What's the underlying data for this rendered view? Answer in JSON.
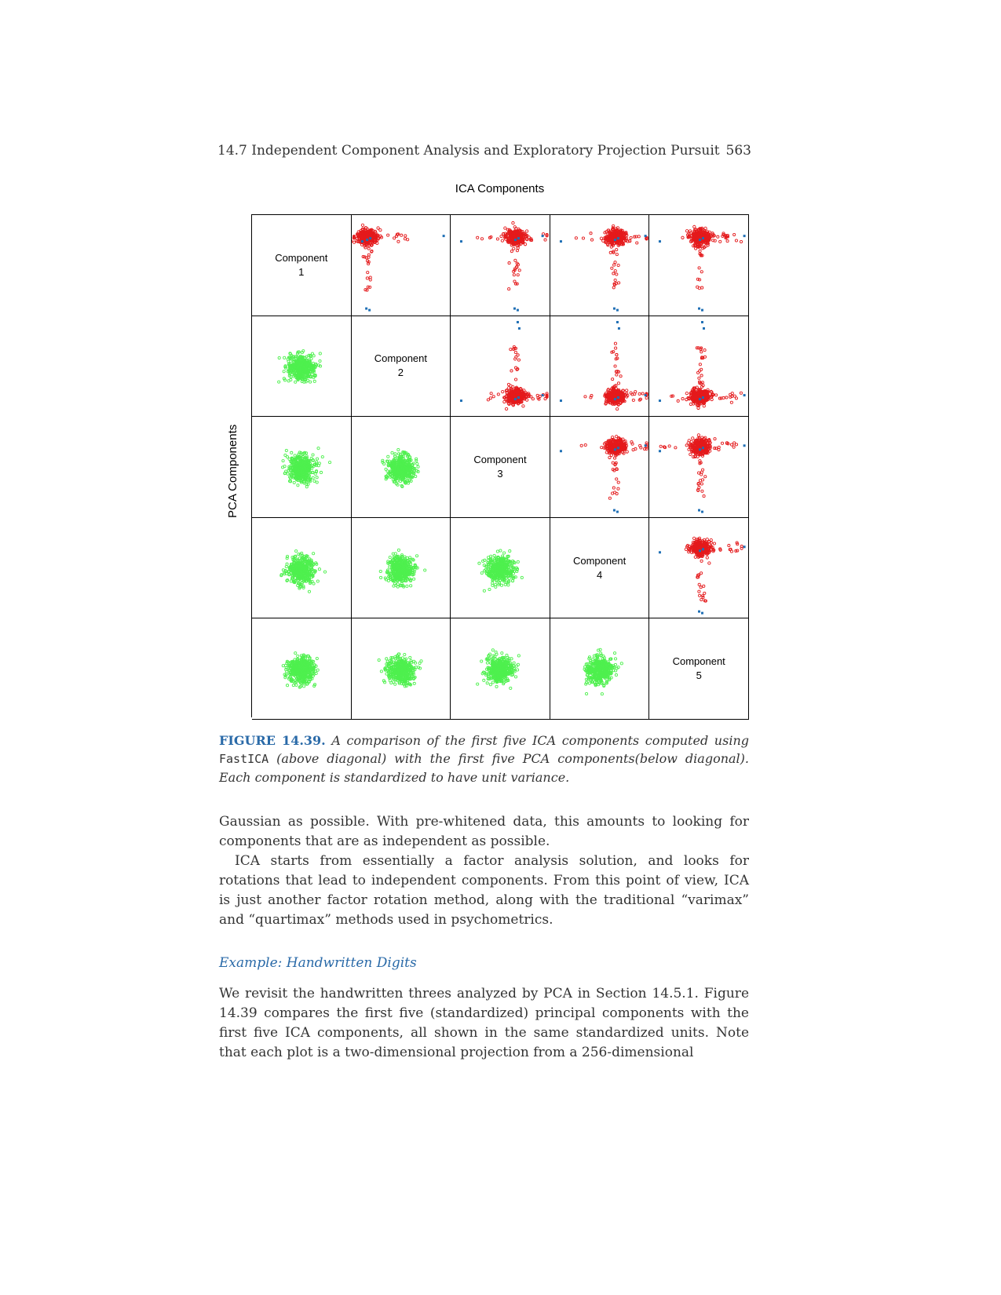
{
  "header": {
    "section_title": "14.7 Independent Component Analysis and Exploratory Projection Pursuit",
    "page_number": "563"
  },
  "figure": {
    "title": "ICA Components",
    "ylabel": "PCA Components",
    "diagonal_labels": [
      {
        "line1": "Component",
        "line2": "1"
      },
      {
        "line1": "Component",
        "line2": "2"
      },
      {
        "line1": "Component",
        "line2": "3"
      },
      {
        "line1": "Component",
        "line2": "4"
      },
      {
        "line1": "Component",
        "line2": "5"
      }
    ],
    "colors": {
      "ica_points": "#e41a1c",
      "ica_highlight": "#1f6fb5",
      "pca_points": "#4ef04e"
    }
  },
  "caption": {
    "label": "FIGURE 14.39.",
    "part1": "A comparison of the first five ICA components computed using",
    "code": "FastICA",
    "part2": "(above diagonal) with the first five PCA components(below diagonal). Each component is standardized to have unit variance."
  },
  "body": {
    "p1": "Gaussian as possible. With pre-whitened data, this amounts to looking for components that are as independent as possible.",
    "p2": "ICA starts from essentially a factor analysis solution, and looks for rotations that lead to independent components. From this point of view, ICA is just another factor rotation method, along with the traditional “varimax” and “quartimax” methods used in psychometrics.",
    "example_heading": "Example: Handwritten Digits",
    "p3": "We revisit the handwritten threes analyzed by PCA in Section 14.5.1. Figure 14.39 compares the first five (standardized) principal components with the first five ICA components, all shown in the same standardized units. Note that each plot is a two-dimensional projection from a 256-dimensional"
  }
}
